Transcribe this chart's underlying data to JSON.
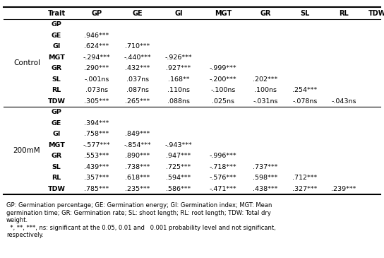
{
  "header_traits": [
    "Trait",
    "GP",
    "GE",
    "GI",
    "MGT",
    "GR",
    "SL",
    "RL",
    "TDW"
  ],
  "control_rows": [
    [
      "GP",
      "",
      "",
      "",
      "",
      "",
      "",
      "",
      ""
    ],
    [
      "GE",
      ".946***",
      "",
      "",
      "",
      "",
      "",
      "",
      ""
    ],
    [
      "GI",
      ".624***",
      ".710***",
      "",
      "",
      "",
      "",
      "",
      ""
    ],
    [
      "MGT",
      "-.294***",
      "-.440***",
      "-.926***",
      "",
      "",
      "",
      "",
      ""
    ],
    [
      "GR",
      ".290***",
      ".432***",
      ".927***",
      "-.999***",
      "",
      "",
      "",
      ""
    ],
    [
      "SL",
      "-.001ns",
      ".037ns",
      ".168**",
      "-.200***",
      ".202***",
      "",
      "",
      ""
    ],
    [
      "RL",
      ".073ns",
      ".087ns",
      ".110ns",
      "-.100ns",
      ".100ns",
      ".254***",
      "",
      ""
    ],
    [
      "TDW",
      ".305***",
      ".265***",
      ".088ns",
      ".025ns",
      "-.031ns",
      "-.078ns",
      "-.043ns",
      ""
    ]
  ],
  "mM200_rows": [
    [
      "GP",
      "",
      "",
      "",
      "",
      "",
      "",
      "",
      ""
    ],
    [
      "GE",
      ".394***",
      "",
      "",
      "",
      "",
      "",
      "",
      ""
    ],
    [
      "GI",
      ".758***",
      ".849***",
      "",
      "",
      "",
      "",
      "",
      ""
    ],
    [
      "MGT",
      "-.577***",
      "-.854***",
      "-.943***",
      "",
      "",
      "",
      "",
      ""
    ],
    [
      "GR",
      ".553***",
      ".890***",
      ".947***",
      "-.996***",
      "",
      "",
      "",
      ""
    ],
    [
      "SL",
      ".439***",
      ".738***",
      ".725***",
      "-.718***",
      ".737***",
      "",
      "",
      ""
    ],
    [
      "RL",
      ".357***",
      ".618***",
      ".594***",
      "-.576***",
      ".598***",
      ".712***",
      "",
      ""
    ],
    [
      "TDW",
      ".785***",
      ".235***",
      ".586***",
      "-.471***",
      ".438***",
      ".327***",
      ".239***",
      ""
    ]
  ],
  "footnote_lines": [
    "GP: Germination percentage; GE: Germination energy; GI: Germination index; MGT: Mean",
    "germination time; GR: Germination rate; SL: shoot length; RL: root length; TDW: Total dry",
    "weight.",
    "  *, **, ***, ns: significant at the 0.05, 0.01 and   0.001 probability level and not significant,",
    "respectively."
  ],
  "group_labels": [
    "Control",
    "200mM"
  ],
  "bg_color": "#ffffff",
  "line_color": "#000000",
  "header_fontsize": 7.0,
  "cell_fontsize": 6.8,
  "group_fontsize": 7.5,
  "footnote_fontsize": 6.0
}
